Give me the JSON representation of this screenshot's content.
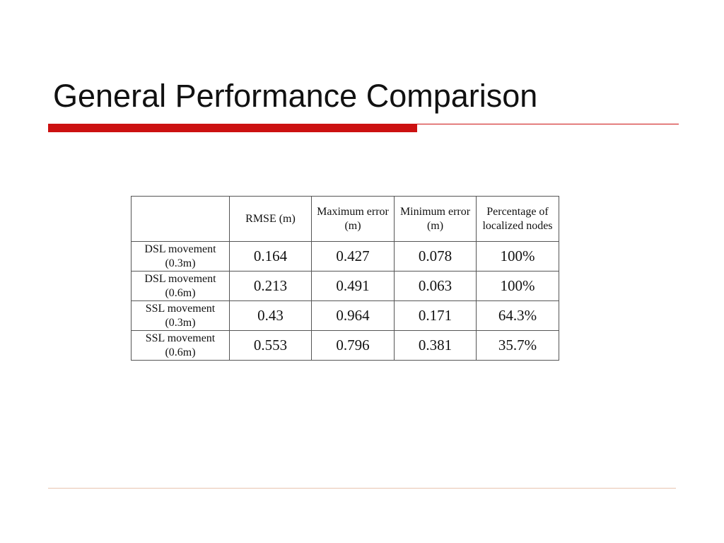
{
  "title": "General Performance Comparison",
  "table": {
    "header": [
      "RMSE (m)",
      "Maximum error (m)",
      "Minimum error (m)",
      "Percentage of localized nodes"
    ],
    "rows": [
      [
        "DSL movement (0.3m)",
        "0.164",
        "0.427",
        "0.078",
        "100%"
      ],
      [
        "DSL movement (0.6m)",
        "0.213",
        "0.491",
        "0.063",
        "100%"
      ],
      [
        "SSL movement (0.3m)",
        "0.43",
        "0.964",
        "0.171",
        "64.3%"
      ],
      [
        "SSL movement (0.6m)",
        "0.553",
        "0.796",
        "0.381",
        "35.7%"
      ]
    ]
  }
}
